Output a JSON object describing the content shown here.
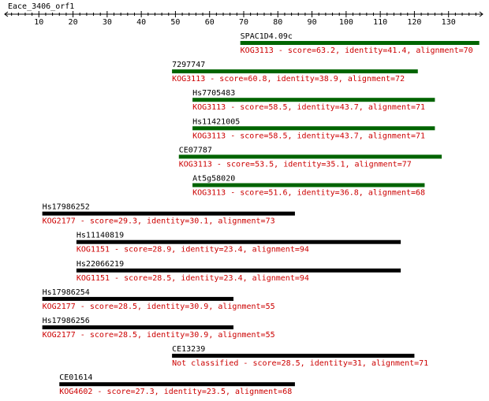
{
  "query": {
    "name": "Eace_3406_orf1",
    "axis_max": 140,
    "ticks": [
      "10",
      "20",
      "30",
      "40",
      "50",
      "60",
      "70",
      "80",
      "90",
      "100",
      "110",
      "120",
      "130"
    ]
  },
  "colors": {
    "green": "#006400",
    "black": "#000000",
    "desc": "#cc0000"
  },
  "hits": [
    {
      "name": "SPAC1D4.09c",
      "start": 69,
      "end": 139,
      "color": "green",
      "desc": "KOG3113 - score=63.2, identity=41.4, alignment=70"
    },
    {
      "name": "7297747",
      "start": 49,
      "end": 121,
      "color": "green",
      "desc": "KOG3113 - score=60.8, identity=38.9, alignment=72"
    },
    {
      "name": "Hs7705483",
      "start": 55,
      "end": 126,
      "color": "green",
      "desc": "KOG3113 - score=58.5, identity=43.7, alignment=71"
    },
    {
      "name": "Hs11421005",
      "start": 55,
      "end": 126,
      "color": "green",
      "desc": "KOG3113 - score=58.5, identity=43.7, alignment=71"
    },
    {
      "name": "CE07787",
      "start": 51,
      "end": 128,
      "color": "green",
      "desc": "KOG3113 - score=53.5, identity=35.1, alignment=77"
    },
    {
      "name": "At5g58020",
      "start": 55,
      "end": 123,
      "color": "green",
      "desc": "KOG3113 - score=51.6, identity=36.8, alignment=68"
    },
    {
      "name": "Hs17986252",
      "start": 11,
      "end": 85,
      "color": "black",
      "desc": "KOG2177 - score=29.3, identity=30.1, alignment=73"
    },
    {
      "name": "Hs11140819",
      "start": 21,
      "end": 116,
      "color": "black",
      "desc": "KOG1151 - score=28.9, identity=23.4, alignment=94"
    },
    {
      "name": "Hs22066219",
      "start": 21,
      "end": 116,
      "color": "black",
      "desc": "KOG1151 - score=28.5, identity=23.4, alignment=94"
    },
    {
      "name": "Hs17986254",
      "start": 11,
      "end": 67,
      "color": "black",
      "desc": "KOG2177 - score=28.5, identity=30.9, alignment=55"
    },
    {
      "name": "Hs17986256",
      "start": 11,
      "end": 67,
      "color": "black",
      "desc": "KOG2177 - score=28.5, identity=30.9, alignment=55"
    },
    {
      "name": "CE13239",
      "start": 49,
      "end": 120,
      "color": "black",
      "desc": "Not classified - score=28.5, identity=31, alignment=71"
    },
    {
      "name": "CE01614",
      "start": 16,
      "end": 85,
      "color": "black",
      "desc": "KOG4602 - score=27.3, identity=23.5, alignment=68"
    }
  ]
}
